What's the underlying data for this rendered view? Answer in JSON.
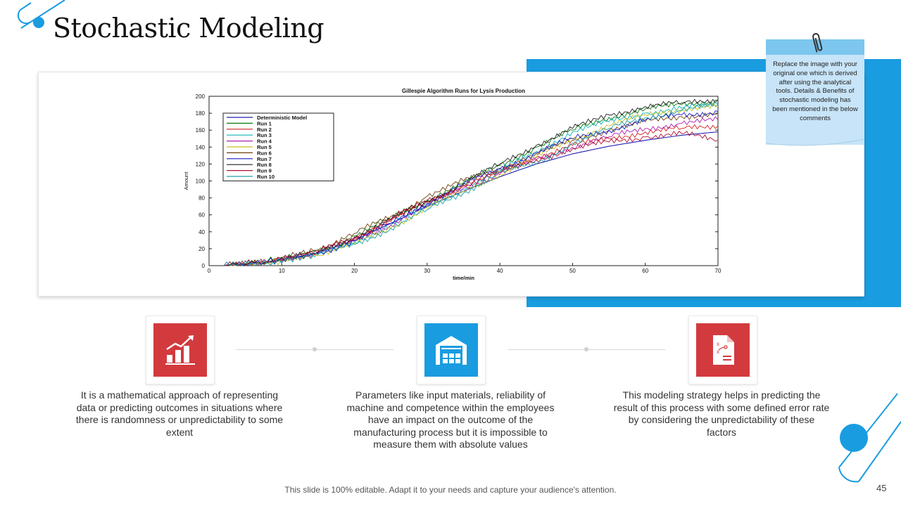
{
  "slide": {
    "title": "Stochastic Modeling",
    "note_text": "Replace the image with your original one which is derived after using the analytical tools. Details & Benefits of stochastic modeling has been mentioned in the below comments",
    "features": [
      {
        "icon": "bar-chart-growth-icon",
        "text": "It is a mathematical approach of representing data or predicting outcomes in situations where there is randomness or unpredictability to some extent",
        "color": "#d23a3e"
      },
      {
        "icon": "warehouse-icon",
        "text": "Parameters like input materials, reliability of machine and competence within the employees have an impact on the outcome of the manufacturing process but it is impossible to measure them with absolute values",
        "color": "#1a9ce0"
      },
      {
        "icon": "strategy-document-icon",
        "text": "This modeling strategy helps in predicting the result of this process with some defined error rate by considering the unpredictability of these factors",
        "color": "#d23a3e"
      }
    ],
    "footer": "This slide is 100% editable. Adapt it to your needs and capture your audience's attention.",
    "page_number": "45",
    "accent_color": "#1a9ce0"
  },
  "chart_data": {
    "type": "line",
    "title": "Gillespie Algorithm Runs for Lysis Production",
    "xlabel": "time/min",
    "ylabel": "Amount",
    "xlim": [
      0,
      70
    ],
    "ylim": [
      0,
      200
    ],
    "xticks": [
      0,
      10,
      20,
      30,
      40,
      50,
      60,
      70
    ],
    "yticks": [
      0,
      20,
      40,
      60,
      80,
      100,
      120,
      140,
      160,
      180,
      200
    ],
    "legend_position": "top-left",
    "x": [
      2,
      8,
      15,
      20,
      25,
      30,
      35,
      40,
      45,
      50,
      55,
      60,
      65,
      70
    ],
    "series": [
      {
        "name": "Deterministic Model",
        "color": "#1f1fb0",
        "values": [
          0,
          4,
          15,
          30,
          50,
          70,
          88,
          105,
          120,
          132,
          141,
          148,
          154,
          158
        ]
      },
      {
        "name": "Run 1",
        "color": "#0a7a0a",
        "values": [
          0,
          5,
          18,
          35,
          55,
          78,
          98,
          118,
          140,
          160,
          175,
          185,
          190,
          195
        ]
      },
      {
        "name": "Run 2",
        "color": "#d02020",
        "values": [
          0,
          4,
          16,
          32,
          52,
          75,
          95,
          110,
          128,
          142,
          150,
          158,
          162,
          165
        ]
      },
      {
        "name": "Run 3",
        "color": "#10b0b8",
        "values": [
          0,
          3,
          14,
          28,
          48,
          70,
          90,
          112,
          135,
          158,
          170,
          180,
          186,
          190
        ]
      },
      {
        "name": "Run 4",
        "color": "#b020b0",
        "values": [
          0,
          4,
          15,
          30,
          48,
          72,
          92,
          108,
          125,
          140,
          152,
          162,
          168,
          172
        ]
      },
      {
        "name": "Run 5",
        "color": "#c8c020",
        "values": [
          0,
          3,
          12,
          26,
          45,
          68,
          88,
          108,
          128,
          150,
          165,
          178,
          185,
          188
        ]
      },
      {
        "name": "Run 6",
        "color": "#704010",
        "values": [
          0,
          5,
          19,
          38,
          58,
          82,
          100,
          115,
          132,
          148,
          160,
          170,
          176,
          180
        ]
      },
      {
        "name": "Run 7",
        "color": "#1818c8",
        "values": [
          0,
          4,
          14,
          29,
          50,
          74,
          96,
          114,
          133,
          150,
          160,
          172,
          178,
          182
        ]
      },
      {
        "name": "Run 8",
        "color": "#202020",
        "values": [
          0,
          4,
          16,
          33,
          54,
          76,
          97,
          120,
          142,
          162,
          178,
          188,
          192,
          196
        ]
      },
      {
        "name": "Run 9",
        "color": "#b01030",
        "values": [
          0,
          5,
          17,
          34,
          55,
          76,
          94,
          110,
          125,
          138,
          146,
          152,
          156,
          148
        ]
      },
      {
        "name": "Run 10",
        "color": "#20a0a8",
        "values": [
          0,
          3,
          13,
          25,
          44,
          66,
          86,
          110,
          120,
          145,
          162,
          175,
          183,
          190
        ]
      }
    ]
  }
}
